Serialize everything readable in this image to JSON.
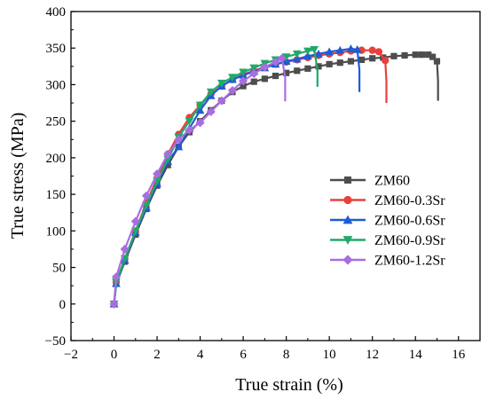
{
  "chart_data": {
    "type": "line",
    "title": "",
    "xlabel": "True strain (%)",
    "ylabel": "True stress (MPa)",
    "xlim": [
      -2,
      17
    ],
    "ylim": [
      -50,
      400
    ],
    "xticks": [
      -2,
      0,
      2,
      4,
      6,
      8,
      10,
      12,
      14,
      16
    ],
    "yticks": [
      -50,
      0,
      50,
      100,
      150,
      200,
      250,
      300,
      350,
      400
    ],
    "grid": false,
    "legend_position": "right",
    "series": [
      {
        "name": "ZM60",
        "color": "#4d4d4d",
        "marker": "square",
        "x": [
          0,
          0.1,
          0.5,
          1.0,
          1.5,
          2.0,
          2.5,
          3.0,
          3.5,
          4.0,
          4.5,
          5.0,
          5.5,
          6.0,
          6.5,
          7.0,
          7.5,
          8.0,
          8.5,
          9.0,
          9.5,
          10.0,
          10.5,
          11.0,
          11.5,
          12.0,
          12.5,
          13.0,
          13.5,
          14.0,
          14.3,
          14.6,
          14.8,
          15.0,
          15.05,
          15.05
        ],
        "y": [
          0,
          28,
          58,
          95,
          130,
          162,
          190,
          215,
          235,
          250,
          265,
          278,
          290,
          298,
          304,
          308,
          312,
          316,
          319,
          322,
          325,
          328,
          330,
          332,
          334,
          336,
          337,
          339,
          340,
          341,
          341,
          341,
          338,
          332,
          305,
          278
        ]
      },
      {
        "name": "ZM60-0.3Sr",
        "color": "#e8403c",
        "marker": "circle",
        "x": [
          0,
          0.1,
          0.5,
          1.0,
          1.5,
          2.0,
          2.5,
          3.0,
          3.5,
          4.0,
          4.5,
          5.0,
          5.5,
          6.0,
          6.5,
          7.0,
          7.5,
          8.0,
          8.5,
          9.0,
          9.5,
          10.0,
          10.5,
          11.0,
          11.5,
          12.0,
          12.3,
          12.6,
          12.65,
          12.65
        ],
        "y": [
          0,
          30,
          62,
          100,
          138,
          172,
          205,
          232,
          255,
          272,
          287,
          298,
          307,
          314,
          319,
          324,
          328,
          331,
          334,
          337,
          340,
          342,
          344,
          346,
          347,
          347,
          345,
          333,
          305,
          275
        ]
      },
      {
        "name": "ZM60-0.6Sr",
        "color": "#1f5bd6",
        "marker": "triangle-up",
        "x": [
          0,
          0.1,
          0.5,
          1.0,
          1.5,
          2.0,
          2.5,
          3.0,
          3.5,
          4.0,
          4.5,
          5.0,
          5.5,
          6.0,
          6.5,
          7.0,
          7.5,
          8.0,
          8.5,
          9.0,
          9.5,
          10.0,
          10.5,
          11.0,
          11.3,
          11.4,
          11.4
        ],
        "y": [
          0,
          28,
          60,
          98,
          132,
          165,
          195,
          215,
          240,
          265,
          285,
          298,
          307,
          313,
          318,
          323,
          328,
          332,
          335,
          339,
          342,
          345,
          347,
          349,
          348,
          320,
          290
        ]
      },
      {
        "name": "ZM60-0.9Sr",
        "color": "#22a86a",
        "marker": "triangle-down",
        "x": [
          0,
          0.1,
          0.5,
          1.0,
          1.5,
          2.0,
          2.5,
          3.0,
          3.5,
          4.0,
          4.5,
          5.0,
          5.5,
          6.0,
          6.5,
          7.0,
          7.5,
          8.0,
          8.5,
          9.0,
          9.3,
          9.45,
          9.45
        ],
        "y": [
          0,
          30,
          62,
          100,
          135,
          168,
          198,
          228,
          250,
          272,
          290,
          302,
          310,
          317,
          323,
          329,
          334,
          338,
          342,
          346,
          348,
          320,
          297
        ]
      },
      {
        "name": "ZM60-1.2Sr",
        "color": "#a86ee0",
        "marker": "diamond",
        "x": [
          0,
          0.1,
          0.5,
          1.0,
          1.5,
          2.0,
          2.5,
          3.0,
          3.5,
          4.0,
          4.5,
          5.0,
          5.5,
          6.0,
          6.5,
          7.0,
          7.5,
          7.8,
          7.95,
          7.95
        ],
        "y": [
          0,
          37,
          75,
          113,
          148,
          178,
          205,
          225,
          238,
          248,
          263,
          278,
          292,
          305,
          315,
          324,
          331,
          336,
          310,
          277
        ]
      }
    ]
  }
}
